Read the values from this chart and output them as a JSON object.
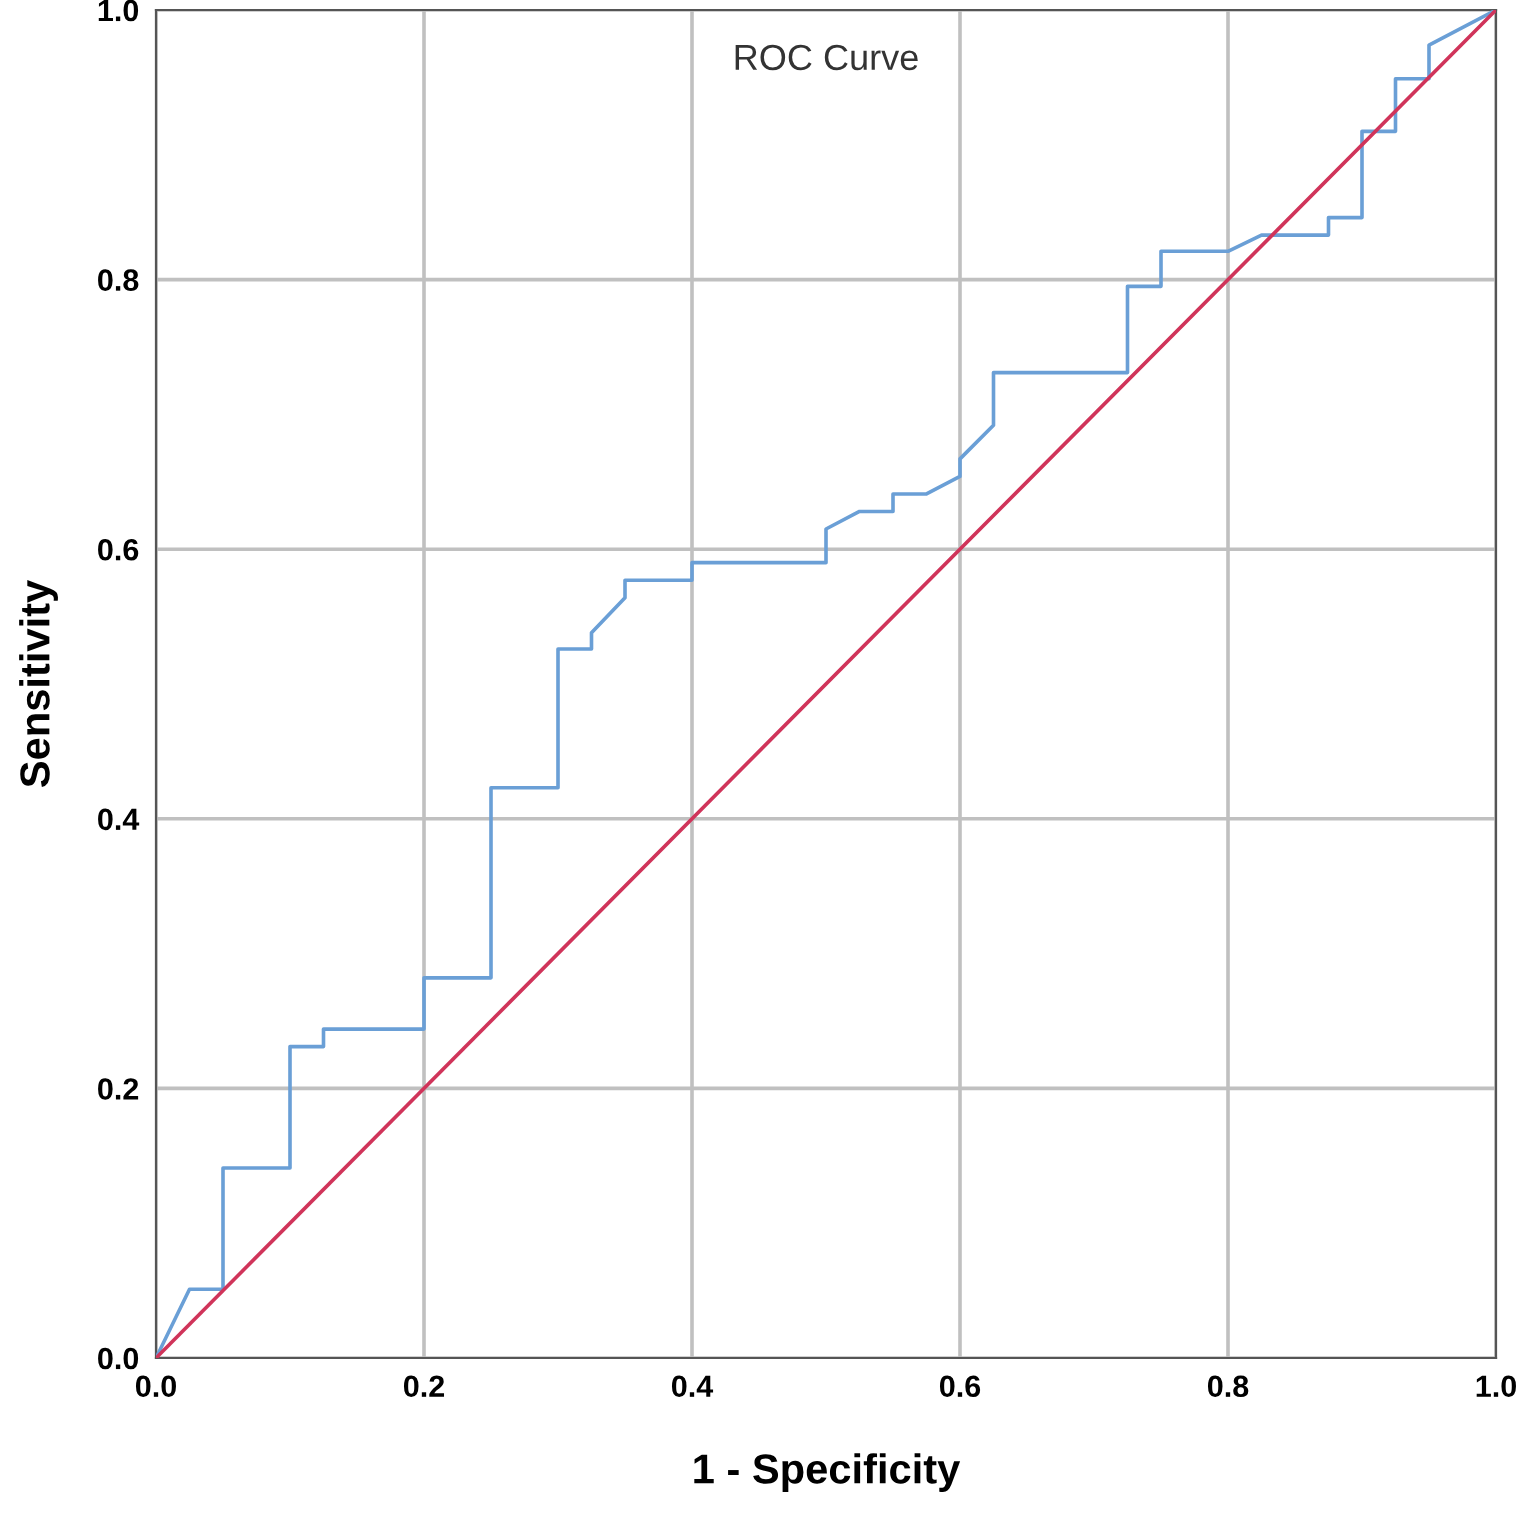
{
  "chart_data": {
    "type": "line",
    "title": "ROC Curve",
    "xlabel": "1 - Specificity",
    "ylabel": "Sensitivity",
    "series": [
      {
        "color": "#6a9fd6",
        "x": [
          0,
          0.025,
          0.05,
          0.05,
          0.1,
          0.1,
          0.125,
          0.125,
          0.2,
          0.2,
          0.25,
          0.25,
          0.3,
          0.3,
          0.325,
          0.325,
          0.35,
          0.35,
          0.4,
          0.4,
          0.5,
          0.5,
          0.525,
          0.55,
          0.55,
          0.575,
          0.6,
          0.6,
          0.625,
          0.625,
          0.725,
          0.725,
          0.75,
          0.75,
          0.8,
          0.825,
          0.875,
          0.875,
          0.9,
          0.9,
          0.925,
          0.925,
          0.95,
          0.95,
          1.0
        ],
        "values": [
          0,
          0.051,
          0.051,
          0.141,
          0.141,
          0.231,
          0.231,
          0.244,
          0.244,
          0.282,
          0.282,
          0.423,
          0.423,
          0.526,
          0.526,
          0.538,
          0.564,
          0.577,
          0.577,
          0.59,
          0.59,
          0.615,
          0.628,
          0.628,
          0.641,
          0.641,
          0.654,
          0.667,
          0.692,
          0.731,
          0.731,
          0.795,
          0.795,
          0.821,
          0.821,
          0.833,
          0.833,
          0.846,
          0.846,
          0.91,
          0.91,
          0.949,
          0.949,
          0.974,
          1.0
        ]
      },
      {
        "color": "#d0345a",
        "x": [
          0,
          1
        ],
        "values": [
          0,
          1
        ]
      }
    ],
    "xlim": [
      0,
      1
    ],
    "ylim": [
      0,
      1
    ],
    "xticks": [
      {
        "value": 0,
        "label": "0.0"
      },
      0.2,
      0.4,
      0.6,
      0.8,
      {
        "value": 1,
        "label": "1.0"
      }
    ],
    "yticks": [
      {
        "value": 0,
        "label": "0.0"
      },
      0.2,
      0.4,
      0.6,
      0.8,
      {
        "value": 1,
        "label": "1.0"
      }
    ],
    "grid": true,
    "legend": false,
    "marker": "none",
    "line_style": "solid"
  }
}
